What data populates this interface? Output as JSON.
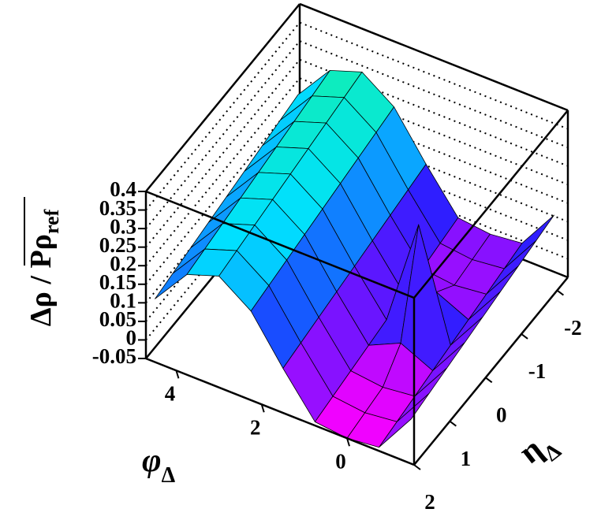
{
  "chart_data": {
    "type": "surface",
    "z_title": "Δρ / Pρ",
    "z_title_sub": "ref",
    "x_title": "φ",
    "x_title_sub": "Δ",
    "y_title": "η",
    "y_title_sub": "Δ",
    "x": [
      -1.5,
      -0.75,
      0,
      0.75,
      1.5,
      2.25,
      3,
      3.75,
      4.5
    ],
    "y": [
      -2,
      -1.5,
      -1,
      -0.5,
      0,
      0.5,
      1,
      1.5,
      2
    ],
    "z": [
      [
        0.15,
        0.04,
        0.03,
        0.04,
        0.15,
        0.27,
        0.33,
        0.3,
        0.2
      ],
      [
        0.14,
        0.03,
        0.02,
        0.03,
        0.14,
        0.26,
        0.32,
        0.29,
        0.19
      ],
      [
        0.13,
        0.02,
        0.01,
        0.02,
        0.13,
        0.25,
        0.31,
        0.28,
        0.18
      ],
      [
        0.12,
        0.01,
        0.05,
        0.01,
        0.12,
        0.24,
        0.3,
        0.27,
        0.17
      ],
      [
        0.11,
        0.0,
        0.29,
        0.0,
        0.11,
        0.23,
        0.29,
        0.26,
        0.16
      ],
      [
        0.1,
        -0.01,
        0.03,
        -0.01,
        0.1,
        0.22,
        0.28,
        0.25,
        0.15
      ],
      [
        0.09,
        -0.02,
        -0.03,
        -0.02,
        0.09,
        0.21,
        0.27,
        0.24,
        0.14
      ],
      [
        0.08,
        -0.03,
        -0.04,
        -0.03,
        0.08,
        0.2,
        0.26,
        0.23,
        0.13
      ],
      [
        0.07,
        -0.04,
        -0.05,
        -0.04,
        0.07,
        0.19,
        0.25,
        0.22,
        0.12
      ]
    ],
    "xlim": [
      -1.57,
      4.71
    ],
    "ylim": [
      -2.3,
      2
    ],
    "zlim": [
      -0.05,
      0.4
    ],
    "xticks": [
      0,
      2,
      4
    ],
    "yticks": [
      -2,
      -1,
      0,
      1,
      2
    ],
    "zticks": [
      -0.05,
      0,
      0.05,
      0.1,
      0.15,
      0.2,
      0.25,
      0.3,
      0.35,
      0.4
    ],
    "grid": true,
    "colormap": [
      "#ff00ff",
      "#2020ff",
      "#00e0ff",
      "#20ff60"
    ]
  }
}
